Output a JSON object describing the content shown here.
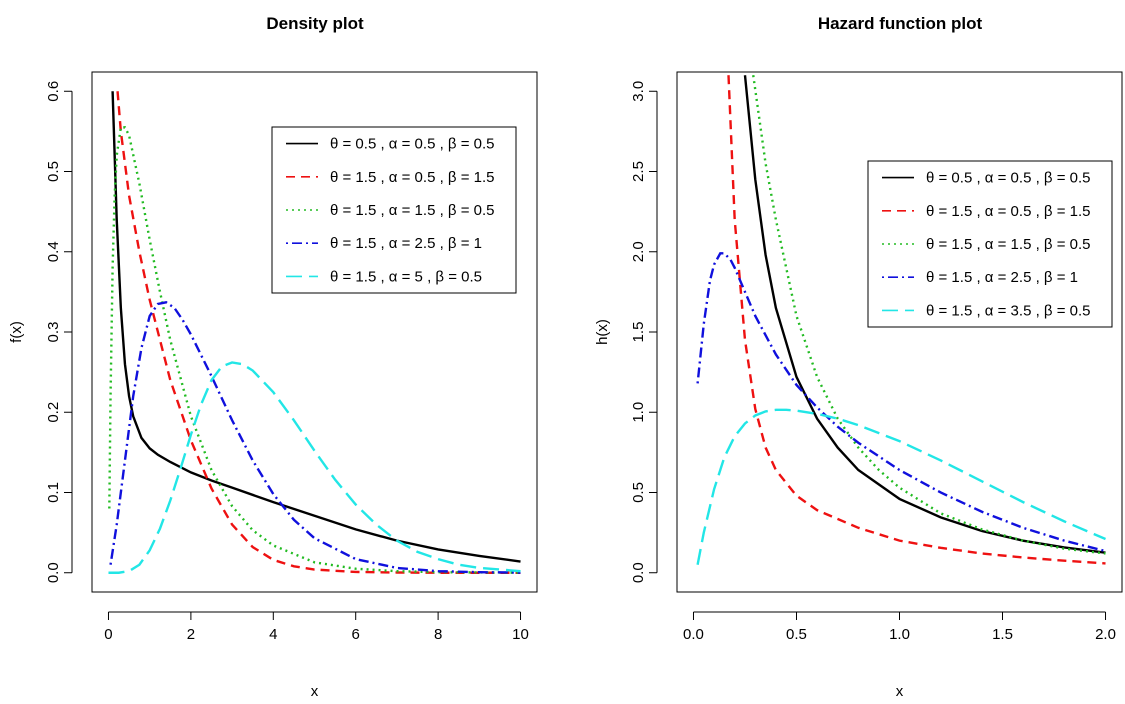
{
  "colors": {
    "black": "#000000",
    "red": "#ee1111",
    "green": "#22bb22",
    "blue": "#1010dd",
    "cyan": "#22e6e6"
  },
  "chart_data": [
    {
      "type": "line",
      "title": "Density plot",
      "xlabel": "x",
      "ylabel": "f(x)",
      "xlim": [
        0,
        10
      ],
      "ylim": [
        0,
        0.6
      ],
      "xticks": [
        "0",
        "2",
        "4",
        "6",
        "8",
        "10"
      ],
      "yticks": [
        "0.0",
        "0.1",
        "0.2",
        "0.3",
        "0.4",
        "0.5",
        "0.6"
      ],
      "grid": false,
      "legend_position": "top-right",
      "series": [
        {
          "name": "θ = 0.5 , α = 0.5 , β = 0.5",
          "color": "#000000",
          "dash": "solid",
          "x": [
            0.1,
            0.2,
            0.3,
            0.4,
            0.5,
            0.6,
            0.8,
            1,
            1.2,
            1.5,
            2,
            2.5,
            3,
            4,
            5,
            6,
            7,
            8,
            9,
            10
          ],
          "y": [
            0.6,
            0.44,
            0.33,
            0.26,
            0.22,
            0.195,
            0.168,
            0.155,
            0.147,
            0.138,
            0.125,
            0.115,
            0.106,
            0.088,
            0.071,
            0.054,
            0.04,
            0.029,
            0.021,
            0.014
          ]
        },
        {
          "name": "θ = 1.5 , α = 0.5 , β = 1.5",
          "color": "#ee1111",
          "dash": "dashed",
          "x": [
            0.22,
            0.3,
            0.5,
            0.75,
            1,
            1.25,
            1.5,
            2,
            2.5,
            3,
            3.5,
            4,
            4.5,
            5,
            6,
            7,
            8,
            10
          ],
          "y": [
            0.6,
            0.55,
            0.47,
            0.4,
            0.34,
            0.29,
            0.24,
            0.165,
            0.105,
            0.06,
            0.032,
            0.016,
            0.008,
            0.004,
            0.001,
            0.0003,
            0,
            0
          ]
        },
        {
          "name": "θ = 1.5 , α = 1.5 , β = 0.5",
          "color": "#22bb22",
          "dash": "dotted",
          "x": [
            0.02,
            0.05,
            0.1,
            0.15,
            0.2,
            0.3,
            0.4,
            0.5,
            0.75,
            1,
            1.25,
            1.5,
            2,
            2.5,
            3,
            3.5,
            4,
            5,
            6,
            7,
            8,
            10
          ],
          "y": [
            0.08,
            0.22,
            0.38,
            0.47,
            0.52,
            0.555,
            0.555,
            0.545,
            0.485,
            0.415,
            0.35,
            0.29,
            0.195,
            0.128,
            0.083,
            0.053,
            0.034,
            0.013,
            0.005,
            0.002,
            0.0007,
            0
          ]
        },
        {
          "name": "θ = 1.5 , α = 2.5 , β = 1",
          "color": "#1010dd",
          "dash": "dotdash",
          "x": [
            0.05,
            0.2,
            0.4,
            0.6,
            0.8,
            1,
            1.2,
            1.4,
            1.6,
            1.8,
            2,
            2.5,
            3,
            3.5,
            4,
            4.5,
            5,
            6,
            7,
            8,
            9,
            10
          ],
          "y": [
            0.01,
            0.06,
            0.14,
            0.22,
            0.28,
            0.32,
            0.335,
            0.337,
            0.33,
            0.315,
            0.297,
            0.245,
            0.19,
            0.14,
            0.098,
            0.066,
            0.043,
            0.017,
            0.006,
            0.002,
            0.0007,
            0.0002
          ]
        },
        {
          "name": "θ = 1.5 , α = 5 , β = 0.5",
          "color": "#22e6e6",
          "dash": "longdash",
          "x": [
            0,
            0.25,
            0.5,
            0.75,
            1,
            1.25,
            1.5,
            1.75,
            2,
            2.25,
            2.5,
            2.75,
            3,
            3.25,
            3.5,
            4,
            4.5,
            5,
            5.5,
            6,
            6.5,
            7,
            7.5,
            8,
            8.5,
            9,
            9.5,
            10
          ],
          "y": [
            0,
            0,
            0.002,
            0.01,
            0.028,
            0.055,
            0.09,
            0.13,
            0.172,
            0.21,
            0.24,
            0.257,
            0.262,
            0.26,
            0.252,
            0.225,
            0.19,
            0.152,
            0.116,
            0.085,
            0.06,
            0.04,
            0.026,
            0.017,
            0.01,
            0.006,
            0.004,
            0.002
          ]
        }
      ]
    },
    {
      "type": "line",
      "title": "Hazard function plot",
      "xlabel": "x",
      "ylabel": "h(x)",
      "xlim": [
        0,
        2
      ],
      "ylim": [
        0,
        3
      ],
      "xticks": [
        "0.0",
        "0.5",
        "1.0",
        "1.5",
        "2.0"
      ],
      "yticks": [
        "0.0",
        "0.5",
        "1.0",
        "1.5",
        "2.0",
        "2.5",
        "3.0"
      ],
      "grid": false,
      "legend_position": "top-right",
      "series": [
        {
          "name": "θ = 0.5 , α = 0.5 , β = 0.5",
          "color": "#000000",
          "dash": "solid",
          "x": [
            0.25,
            0.3,
            0.35,
            0.4,
            0.5,
            0.6,
            0.7,
            0.8,
            1,
            1.2,
            1.4,
            1.6,
            1.8,
            2
          ],
          "y": [
            3.1,
            2.45,
            1.98,
            1.65,
            1.22,
            0.96,
            0.78,
            0.64,
            0.46,
            0.345,
            0.26,
            0.2,
            0.158,
            0.125
          ]
        },
        {
          "name": "θ = 1.5 , α = 0.5 , β = 1.5",
          "color": "#ee1111",
          "dash": "dashed",
          "x": [
            0.17,
            0.2,
            0.25,
            0.3,
            0.35,
            0.4,
            0.5,
            0.6,
            0.8,
            1,
            1.2,
            1.4,
            1.6,
            1.8,
            2
          ],
          "y": [
            3.1,
            2.2,
            1.45,
            1.02,
            0.78,
            0.64,
            0.48,
            0.39,
            0.28,
            0.2,
            0.155,
            0.12,
            0.095,
            0.075,
            0.058
          ]
        },
        {
          "name": "θ = 1.5 , α = 1.5 , β = 0.5",
          "color": "#22bb22",
          "dash": "dotted",
          "x": [
            0.29,
            0.35,
            0.4,
            0.5,
            0.6,
            0.7,
            0.8,
            0.9,
            1,
            1.2,
            1.4,
            1.6,
            1.8,
            2
          ],
          "y": [
            3.1,
            2.55,
            2.2,
            1.6,
            1.22,
            0.96,
            0.78,
            0.64,
            0.53,
            0.37,
            0.27,
            0.2,
            0.15,
            0.12
          ]
        },
        {
          "name": "θ = 1.5 , α = 2.5 , β = 1",
          "color": "#1010dd",
          "dash": "dotdash",
          "x": [
            0.02,
            0.05,
            0.08,
            0.1,
            0.13,
            0.15,
            0.18,
            0.2,
            0.25,
            0.3,
            0.4,
            0.5,
            0.6,
            0.7,
            0.8,
            1,
            1.2,
            1.4,
            1.6,
            1.8,
            2
          ],
          "y": [
            1.18,
            1.55,
            1.82,
            1.92,
            1.99,
            1.99,
            1.95,
            1.9,
            1.75,
            1.6,
            1.36,
            1.17,
            1.03,
            0.91,
            0.81,
            0.64,
            0.5,
            0.38,
            0.28,
            0.2,
            0.135
          ]
        },
        {
          "name": "θ = 1.5 , α = 3.5 , β = 0.5",
          "color": "#22e6e6",
          "dash": "longdash",
          "x": [
            0.02,
            0.05,
            0.1,
            0.15,
            0.2,
            0.25,
            0.3,
            0.35,
            0.4,
            0.45,
            0.5,
            0.6,
            0.7,
            0.8,
            1,
            1.2,
            1.4,
            1.6,
            1.8,
            2
          ],
          "y": [
            0.05,
            0.25,
            0.52,
            0.72,
            0.85,
            0.93,
            0.98,
            1.005,
            1.015,
            1.015,
            1.01,
            0.99,
            0.96,
            0.92,
            0.82,
            0.7,
            0.57,
            0.44,
            0.32,
            0.21
          ]
        }
      ]
    }
  ]
}
